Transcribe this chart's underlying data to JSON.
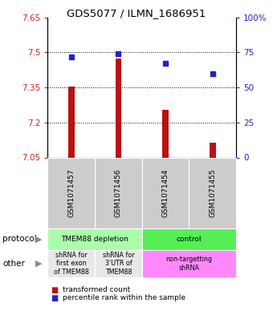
{
  "title": "GDS5077 / ILMN_1686951",
  "samples": [
    "GSM1071457",
    "GSM1071456",
    "GSM1071454",
    "GSM1071455"
  ],
  "bar_values": [
    7.355,
    7.472,
    7.255,
    7.115
  ],
  "bar_base": 7.05,
  "blue_values": [
    72,
    74,
    67,
    60
  ],
  "ylim_left": [
    7.05,
    7.65
  ],
  "ylim_right": [
    0,
    100
  ],
  "yticks_left": [
    7.05,
    7.2,
    7.35,
    7.5,
    7.65
  ],
  "yticks_right": [
    0,
    25,
    50,
    75,
    100
  ],
  "ytick_labels_left": [
    "7.05",
    "7.2",
    "7.35",
    "7.5",
    "7.65"
  ],
  "ytick_labels_right": [
    "0",
    "25",
    "50",
    "75",
    "100%"
  ],
  "bar_color": "#bb1111",
  "dot_color": "#2222cc",
  "protocol_depletion_color": "#aaffaa",
  "protocol_control_color": "#55ee55",
  "other_gray_color": "#e8e8e8",
  "other_pink_color": "#ff88ff",
  "sample_box_color": "#cccccc",
  "legend_bar_label": "transformed count",
  "legend_dot_label": "percentile rank within the sample",
  "bg_color": "#ffffff"
}
